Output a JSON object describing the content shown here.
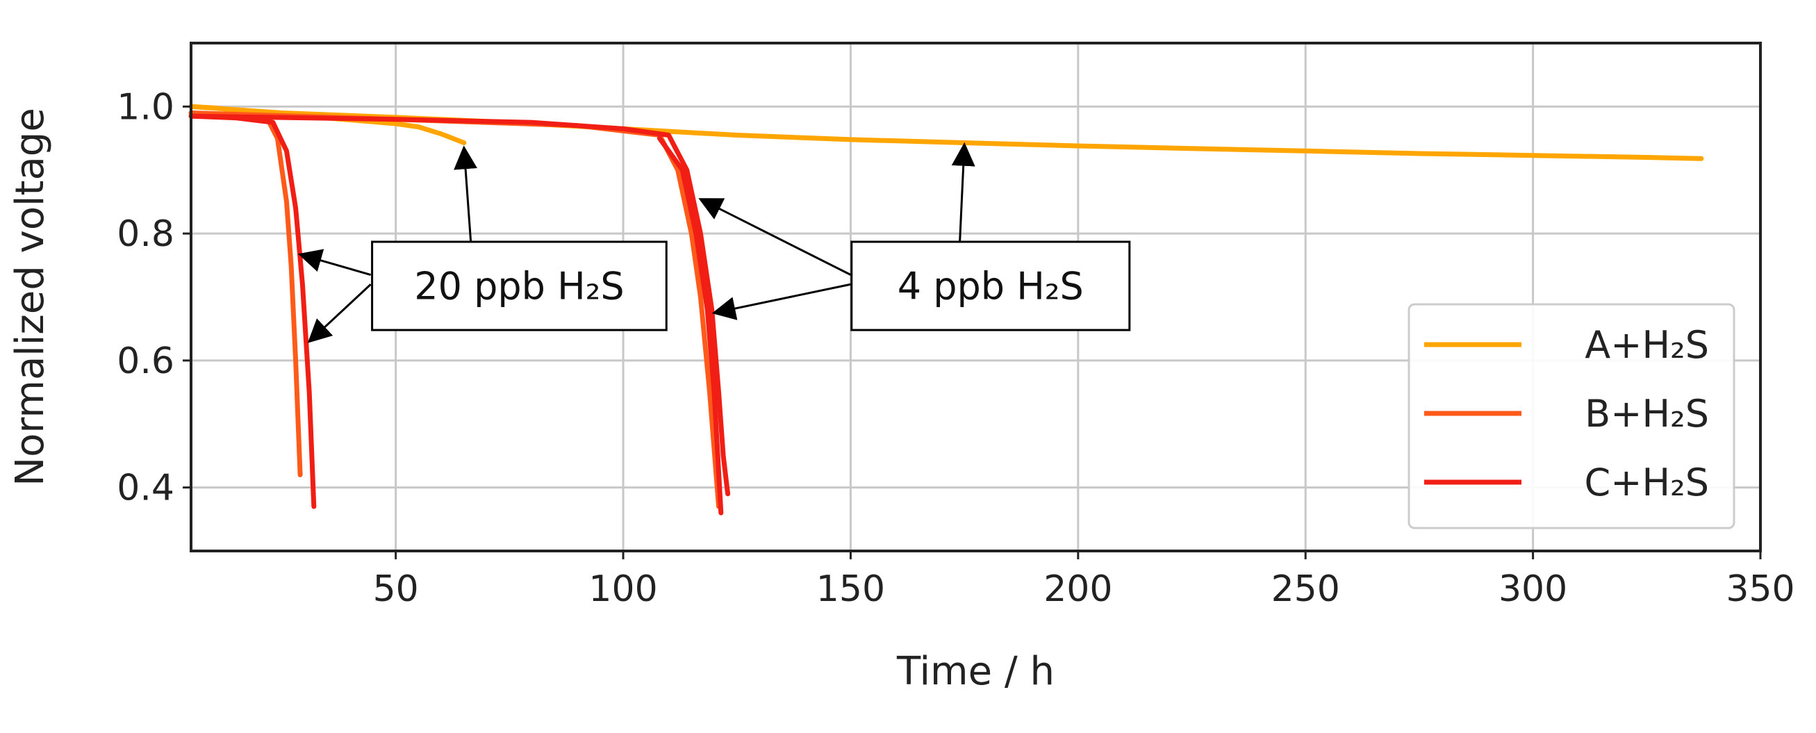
{
  "chart_data": {
    "type": "line",
    "xlabel": "Time / h",
    "ylabel": "Normalized voltage",
    "xlim": [
      5,
      350
    ],
    "ylim": [
      0.3,
      1.1
    ],
    "xticks": [
      50,
      100,
      150,
      200,
      250,
      300,
      350
    ],
    "yticks": [
      0.4,
      0.6,
      0.8,
      1.0
    ],
    "xtick_labels": [
      "50",
      "100",
      "150",
      "200",
      "250",
      "300",
      "350"
    ],
    "ytick_labels": [
      "0.4",
      "0.6",
      "0.8",
      "1.0"
    ],
    "grid": true,
    "legend_position": "lower-right",
    "series": [
      {
        "name": "A+H₂S",
        "color": "#FFA500",
        "points": [
          [
            5,
            1.0
          ],
          [
            10,
            0.998
          ],
          [
            20,
            0.99
          ],
          [
            30,
            0.985
          ],
          [
            40,
            0.979
          ],
          [
            50,
            0.973
          ],
          [
            55,
            0.968
          ],
          [
            60,
            0.957
          ],
          [
            65,
            0.943
          ]
        ]
      },
      {
        "name": "A+H₂S",
        "color": "#FFA500",
        "points": [
          [
            5,
            1.0
          ],
          [
            25,
            0.99
          ],
          [
            50,
            0.983
          ],
          [
            75,
            0.975
          ],
          [
            100,
            0.965
          ],
          [
            125,
            0.955
          ],
          [
            150,
            0.948
          ],
          [
            175,
            0.943
          ],
          [
            200,
            0.938
          ],
          [
            225,
            0.934
          ],
          [
            250,
            0.93
          ],
          [
            275,
            0.926
          ],
          [
            300,
            0.923
          ],
          [
            325,
            0.92
          ],
          [
            337,
            0.918
          ]
        ]
      },
      {
        "name": "B+H₂S",
        "color": "#FF5A1A",
        "points": [
          [
            5,
            0.99
          ],
          [
            15,
            0.985
          ],
          [
            22,
            0.978
          ],
          [
            24,
            0.95
          ],
          [
            26,
            0.85
          ],
          [
            27,
            0.75
          ],
          [
            28,
            0.6
          ],
          [
            29,
            0.42
          ]
        ]
      },
      {
        "name": "B+H₂S",
        "color": "#FF5A1A",
        "points": [
          [
            5,
            0.99
          ],
          [
            50,
            0.98
          ],
          [
            90,
            0.97
          ],
          [
            108,
            0.955
          ],
          [
            112,
            0.9
          ],
          [
            115,
            0.8
          ],
          [
            117,
            0.7
          ],
          [
            119,
            0.55
          ],
          [
            121,
            0.37
          ]
        ]
      },
      {
        "name": "C+H₂S",
        "color": "#F01E14",
        "points": [
          [
            5,
            0.985
          ],
          [
            15,
            0.982
          ],
          [
            23,
            0.975
          ],
          [
            26,
            0.93
          ],
          [
            28,
            0.84
          ],
          [
            29.5,
            0.72
          ],
          [
            31,
            0.55
          ],
          [
            32,
            0.37
          ]
        ]
      },
      {
        "name": "C+H₂S",
        "color": "#F01E14",
        "points": [
          [
            5,
            0.985
          ],
          [
            50,
            0.98
          ],
          [
            80,
            0.975
          ],
          [
            100,
            0.965
          ],
          [
            110,
            0.955
          ],
          [
            114,
            0.9
          ],
          [
            117,
            0.8
          ],
          [
            119.5,
            0.68
          ],
          [
            121,
            0.55
          ],
          [
            122,
            0.45
          ],
          [
            123,
            0.39
          ]
        ]
      },
      {
        "name": "C+H₂S",
        "color": "#F01E14",
        "points": [
          [
            108,
            0.95
          ],
          [
            113,
            0.9
          ],
          [
            116,
            0.8
          ],
          [
            118.5,
            0.68
          ],
          [
            120,
            0.55
          ],
          [
            121.5,
            0.36
          ]
        ]
      }
    ],
    "legend": [
      {
        "label": "A+H₂S",
        "color": "#FFA500"
      },
      {
        "label": "B+H₂S",
        "color": "#FF5A1A"
      },
      {
        "label": "C+H₂S",
        "color": "#F01E14"
      }
    ],
    "annotations": [
      {
        "text": "20 ppb H₂S",
        "box": {
          "x0": 44.8,
          "y0": 0.648,
          "x1": 109.5,
          "y1": 0.787
        },
        "arrows": [
          {
            "from": [
              44.5,
              0.735
            ],
            "to": [
              29,
              0.767
            ]
          },
          {
            "from": [
              44.5,
              0.72
            ],
            "to": [
              31,
              0.63
            ]
          },
          {
            "from": [
              66.5,
              0.787
            ],
            "to": [
              65,
              0.935
            ]
          }
        ]
      },
      {
        "text": "4 ppb H₂S",
        "box": {
          "x0": 150.2,
          "y0": 0.648,
          "x1": 211.3,
          "y1": 0.787
        },
        "arrows": [
          {
            "from": [
              150,
              0.735
            ],
            "to": [
              117,
              0.854
            ]
          },
          {
            "from": [
              150,
              0.72
            ],
            "to": [
              120,
              0.675
            ]
          },
          {
            "from": [
              174,
              0.787
            ],
            "to": [
              175,
              0.94
            ]
          }
        ]
      }
    ]
  }
}
